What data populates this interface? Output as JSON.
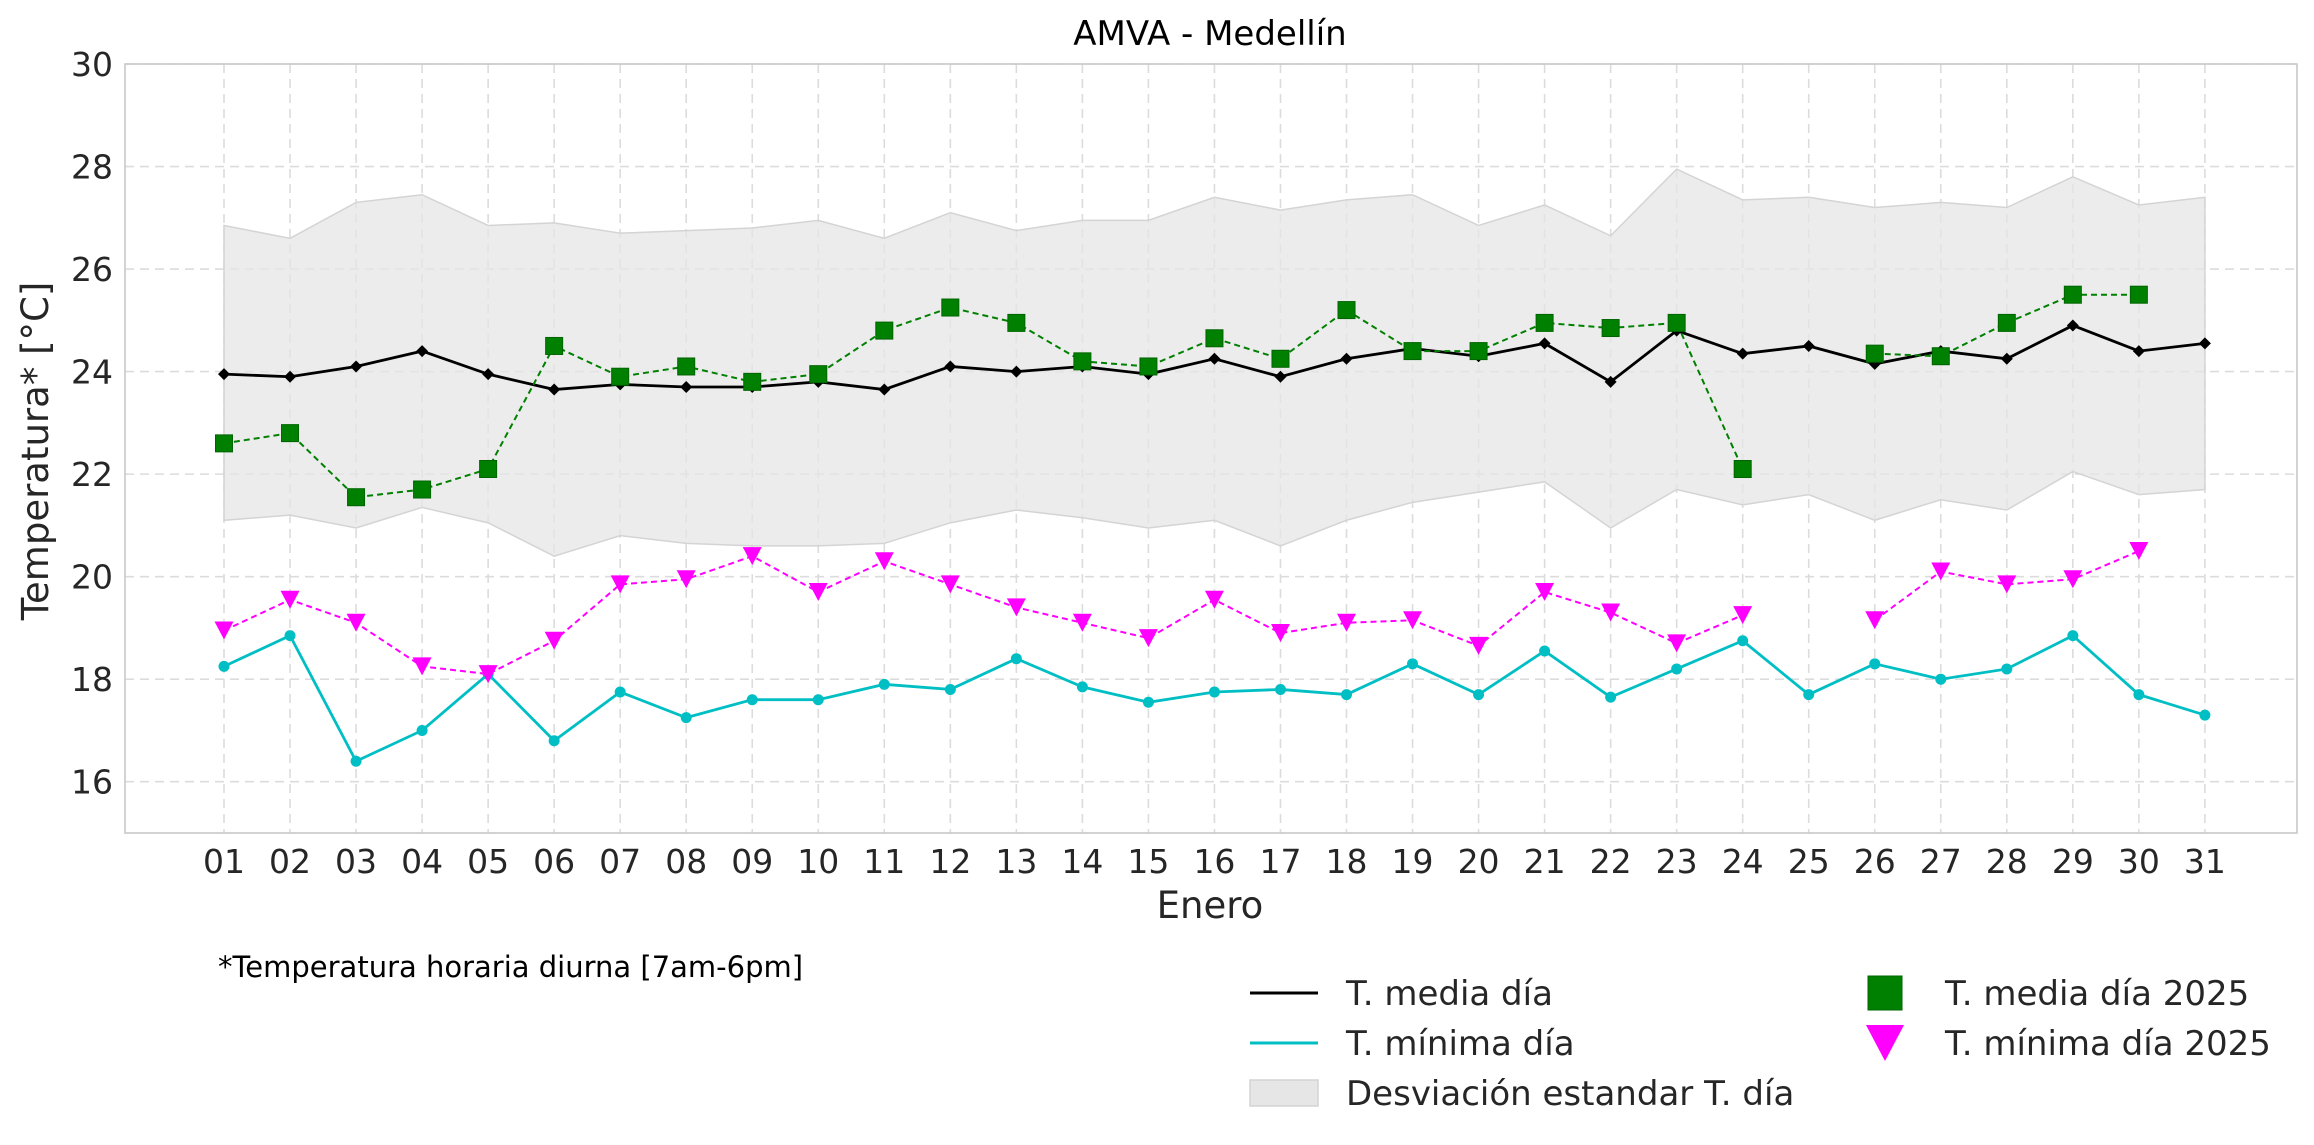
{
  "chart_data": {
    "type": "line",
    "title": "AMVA - Medellín",
    "xlabel": "Enero",
    "ylabel": "Temperatura* [°C]",
    "footnote": "*Temperatura horaria diurna [7am-6pm]",
    "ylim": [
      15,
      30
    ],
    "yticks": [
      16,
      18,
      20,
      22,
      24,
      26,
      28,
      30
    ],
    "grid": true,
    "legend_position": "bottom",
    "categories": [
      "01",
      "02",
      "03",
      "04",
      "05",
      "06",
      "07",
      "08",
      "09",
      "10",
      "11",
      "12",
      "13",
      "14",
      "15",
      "16",
      "17",
      "18",
      "19",
      "20",
      "21",
      "22",
      "23",
      "24",
      "25",
      "26",
      "27",
      "28",
      "29",
      "30",
      "31"
    ],
    "band": {
      "name": "Desviación estandar T. día",
      "color": "#e6e6e6",
      "upper": [
        26.85,
        26.6,
        27.3,
        27.45,
        26.85,
        26.9,
        26.7,
        26.75,
        26.8,
        26.95,
        26.6,
        27.1,
        26.75,
        26.95,
        26.95,
        27.4,
        27.15,
        27.35,
        27.45,
        26.85,
        27.25,
        26.65,
        27.95,
        27.35,
        27.4,
        27.2,
        27.3,
        27.2,
        27.8,
        27.25,
        27.4
      ],
      "lower": [
        21.1,
        21.2,
        20.95,
        21.35,
        21.05,
        20.4,
        20.8,
        20.65,
        20.6,
        20.6,
        20.65,
        21.05,
        21.3,
        21.15,
        20.95,
        21.1,
        20.6,
        21.1,
        21.45,
        21.65,
        21.85,
        20.95,
        21.7,
        21.4,
        21.6,
        21.1,
        21.5,
        21.3,
        22.05,
        21.6,
        21.7
      ]
    },
    "series": [
      {
        "name": "T. media día",
        "color": "#000000",
        "style": "solid",
        "marker": "diamond",
        "values": [
          23.95,
          23.9,
          24.1,
          24.4,
          23.95,
          23.65,
          23.75,
          23.7,
          23.7,
          23.8,
          23.65,
          24.1,
          24.0,
          24.1,
          23.95,
          24.25,
          23.9,
          24.25,
          24.45,
          24.3,
          24.55,
          23.8,
          24.8,
          24.35,
          24.5,
          24.15,
          24.4,
          24.25,
          24.9,
          24.4,
          24.55
        ]
      },
      {
        "name": "T. mínima día",
        "color": "#00bfc4",
        "style": "solid",
        "marker": "circle",
        "values": [
          18.25,
          18.85,
          16.4,
          17.0,
          18.1,
          16.8,
          17.75,
          17.25,
          17.6,
          17.6,
          17.9,
          17.8,
          18.4,
          17.85,
          17.55,
          17.75,
          17.8,
          17.7,
          18.3,
          17.7,
          18.55,
          17.65,
          18.2,
          18.75,
          17.7,
          18.3,
          18.0,
          18.2,
          18.85,
          17.7,
          17.3
        ]
      },
      {
        "name": "T. media día 2025",
        "color": "#008000",
        "style": "dashed",
        "marker": "square",
        "values": [
          22.6,
          22.8,
          21.55,
          21.7,
          22.1,
          24.5,
          23.9,
          24.1,
          23.8,
          23.95,
          24.8,
          25.25,
          24.95,
          24.2,
          24.1,
          24.65,
          24.25,
          25.2,
          24.4,
          24.4,
          24.95,
          24.85,
          24.95,
          22.1,
          null,
          24.35,
          24.3,
          24.95,
          25.5,
          25.5,
          null
        ]
      },
      {
        "name": "T. mínima día 2025",
        "color": "#ff00ff",
        "style": "dashed",
        "marker": "triangle-down",
        "values": [
          18.95,
          19.55,
          19.1,
          18.25,
          18.1,
          18.75,
          19.85,
          19.95,
          20.4,
          19.7,
          20.3,
          19.85,
          19.4,
          19.1,
          18.8,
          19.55,
          18.9,
          19.1,
          19.15,
          18.65,
          19.7,
          19.3,
          18.7,
          19.25,
          null,
          19.15,
          20.1,
          19.85,
          19.95,
          20.5,
          null
        ]
      }
    ]
  }
}
